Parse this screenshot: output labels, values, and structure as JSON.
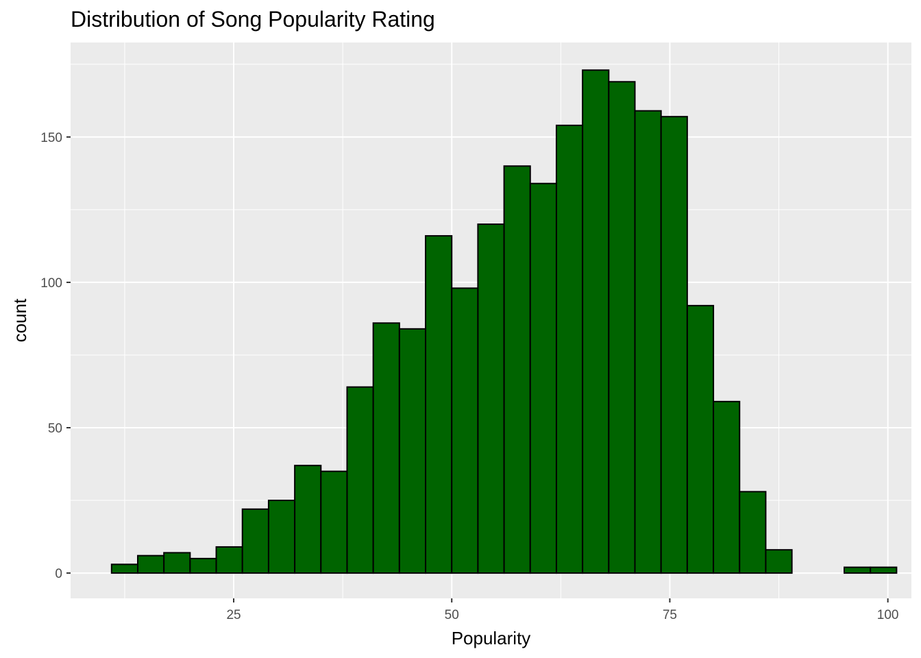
{
  "chart_data": {
    "type": "bar",
    "title": "Distribution of Song Popularity Rating",
    "xlabel": "Popularity",
    "ylabel": "count",
    "xlim": [
      6.3,
      102.7
    ],
    "ylim": [
      -8.7,
      182.5
    ],
    "x_ticks": [
      25,
      50,
      75,
      100
    ],
    "x_minor_ticks": [
      12.5,
      37.5,
      62.5,
      87.5
    ],
    "y_ticks": [
      0,
      50,
      100,
      150
    ],
    "y_minor_ticks": [
      25,
      75,
      125,
      175
    ],
    "grid": true,
    "bins": [
      {
        "x0": 11.0,
        "x1": 14.0,
        "count": 3
      },
      {
        "x0": 14.0,
        "x1": 17.0,
        "count": 6
      },
      {
        "x0": 17.0,
        "x1": 20.0,
        "count": 7
      },
      {
        "x0": 20.0,
        "x1": 23.0,
        "count": 5
      },
      {
        "x0": 23.0,
        "x1": 26.0,
        "count": 9
      },
      {
        "x0": 26.0,
        "x1": 29.0,
        "count": 22
      },
      {
        "x0": 29.0,
        "x1": 32.0,
        "count": 25
      },
      {
        "x0": 32.0,
        "x1": 35.0,
        "count": 37
      },
      {
        "x0": 35.0,
        "x1": 38.0,
        "count": 35
      },
      {
        "x0": 38.0,
        "x1": 41.0,
        "count": 64
      },
      {
        "x0": 41.0,
        "x1": 44.0,
        "count": 86
      },
      {
        "x0": 44.0,
        "x1": 47.0,
        "count": 84
      },
      {
        "x0": 47.0,
        "x1": 50.0,
        "count": 116
      },
      {
        "x0": 50.0,
        "x1": 53.0,
        "count": 98
      },
      {
        "x0": 53.0,
        "x1": 56.0,
        "count": 120
      },
      {
        "x0": 56.0,
        "x1": 59.0,
        "count": 140
      },
      {
        "x0": 59.0,
        "x1": 62.0,
        "count": 134
      },
      {
        "x0": 62.0,
        "x1": 65.0,
        "count": 154
      },
      {
        "x0": 65.0,
        "x1": 68.0,
        "count": 173
      },
      {
        "x0": 68.0,
        "x1": 71.0,
        "count": 169
      },
      {
        "x0": 71.0,
        "x1": 74.0,
        "count": 159
      },
      {
        "x0": 74.0,
        "x1": 77.0,
        "count": 157
      },
      {
        "x0": 77.0,
        "x1": 80.0,
        "count": 92
      },
      {
        "x0": 80.0,
        "x1": 83.0,
        "count": 59
      },
      {
        "x0": 83.0,
        "x1": 86.0,
        "count": 28
      },
      {
        "x0": 86.0,
        "x1": 89.0,
        "count": 8
      },
      {
        "x0": 89.0,
        "x1": 92.0,
        "count": 0
      },
      {
        "x0": 92.0,
        "x1": 95.0,
        "count": 0
      },
      {
        "x0": 95.0,
        "x1": 98.0,
        "count": 2
      },
      {
        "x0": 98.0,
        "x1": 101.0,
        "count": 2
      }
    ],
    "colors": {
      "bar_fill": "#006400",
      "bar_outline": "#000000",
      "panel_background": "#ebebeb",
      "grid": "#ffffff",
      "tick_text": "#4d4d4d"
    }
  }
}
